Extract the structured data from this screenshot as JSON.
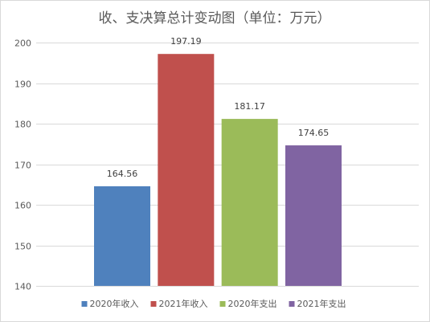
{
  "chart_data": {
    "type": "bar",
    "title": "收、支决算总计变动图（单位：万元）",
    "xlabel": "",
    "ylabel": "",
    "categories": [
      "2020年收入",
      "2021年收入",
      "2020年支出",
      "2021年支出"
    ],
    "values": [
      164.56,
      197.19,
      181.17,
      174.65
    ],
    "data_labels": [
      "164.56",
      "197.19",
      "181.17",
      "174.65"
    ],
    "colors": [
      "#4f81bd",
      "#c0504d",
      "#9bbb59",
      "#8064a2"
    ],
    "ylim": [
      140,
      200
    ],
    "yticks": [
      140,
      150,
      160,
      170,
      180,
      190,
      200
    ],
    "ytick_labels": [
      "140",
      "150",
      "160",
      "170",
      "180",
      "190",
      "200"
    ],
    "grid": true,
    "legend": {
      "placement": "bottom",
      "entries": [
        "2020年收入",
        "2021年收入",
        "2020年支出",
        "2021年支出"
      ]
    }
  }
}
